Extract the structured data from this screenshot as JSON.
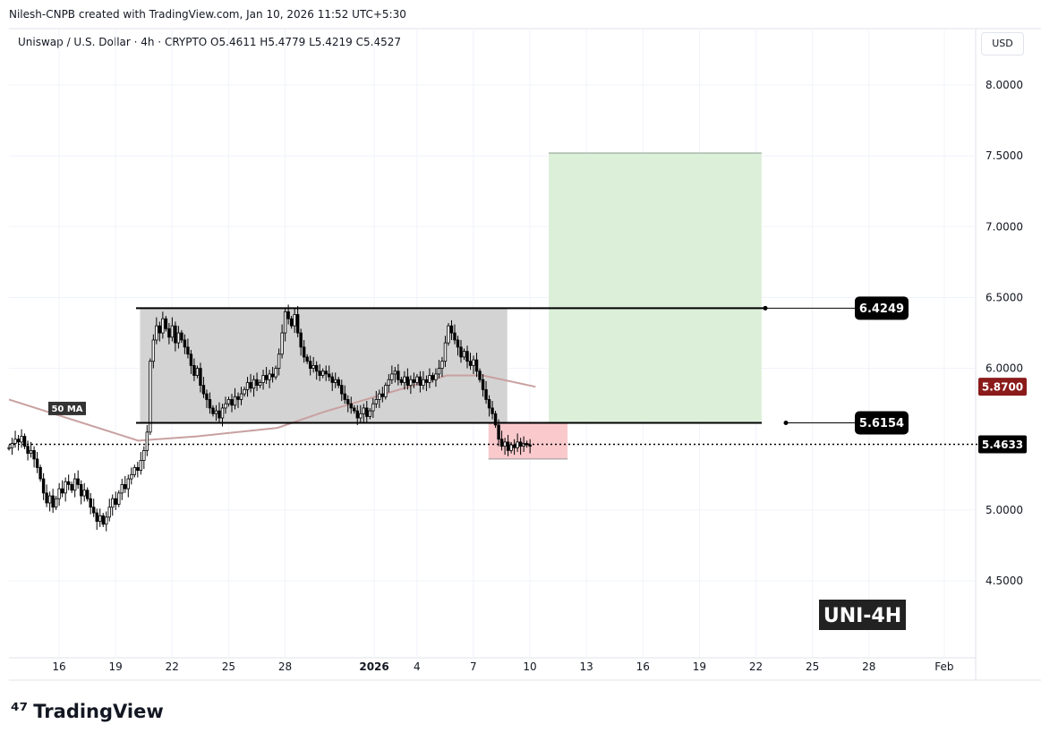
{
  "credit": "Nilesh-CNPB created with TradingView.com, Jan 10, 2026 11:52 UTC+5:30",
  "legend": "Uniswap / U.S. Dollar · 4h · CRYPTO  O5.4611  H5.4779  L5.4219  C5.4527",
  "currency": "USD",
  "price_ticks": [
    "8.0000",
    "7.5000",
    "7.0000",
    "6.5000",
    "6.0000",
    "5.0000",
    "4.5000"
  ],
  "time_ticks": [
    {
      "label": "16",
      "day": 0
    },
    {
      "label": "19",
      "day": 3
    },
    {
      "label": "22",
      "day": 6
    },
    {
      "label": "25",
      "day": 9
    },
    {
      "label": "28",
      "day": 12
    },
    {
      "label": "2026",
      "day": 16.4,
      "bold": true
    },
    {
      "label": "4",
      "day": 19
    },
    {
      "label": "7",
      "day": 22
    },
    {
      "label": "10",
      "day": 25
    },
    {
      "label": "13",
      "day": 28
    },
    {
      "label": "16",
      "day": 31
    },
    {
      "label": "19",
      "day": 34
    },
    {
      "label": "22",
      "day": 37
    },
    {
      "label": "25",
      "day": 40
    },
    {
      "label": "28",
      "day": 43
    },
    {
      "label": "Feb",
      "day": 47
    }
  ],
  "levels": {
    "resistance": "6.4249",
    "support": "5.6154",
    "ma_value": "5.8700",
    "last_price": "5.4633"
  },
  "ma_label": "50 MA",
  "watermark": "UNI-4H",
  "brand": "TradingView",
  "colors": {
    "up": "#ffffff",
    "down": "#000000",
    "ma": "#c9a0a0",
    "ma_badge": "#8b1a1a",
    "range_box": "#d3d3d3",
    "target": "#dcefd9",
    "stop": "#f9c9cc"
  },
  "chart_data": {
    "type": "candlestick",
    "timeframe": "4h",
    "first_candle_day": -2.66,
    "closes": [
      5.44,
      5.47,
      5.5,
      5.48,
      5.52,
      5.45,
      5.4,
      5.42,
      5.36,
      5.3,
      5.22,
      5.12,
      5.05,
      5.1,
      5.02,
      5.08,
      5.15,
      5.12,
      5.2,
      5.18,
      5.14,
      5.22,
      5.18,
      5.1,
      5.14,
      5.08,
      5.02,
      4.98,
      4.92,
      4.96,
      4.9,
      4.95,
      5.02,
      5.08,
      5.04,
      5.12,
      5.18,
      5.15,
      5.22,
      5.25,
      5.3,
      5.28,
      5.35,
      5.42,
      5.55,
      6.05,
      6.2,
      6.3,
      6.25,
      6.35,
      6.28,
      6.22,
      6.3,
      6.18,
      6.25,
      6.2,
      6.15,
      6.1,
      6.02,
      5.95,
      6.0,
      5.88,
      5.82,
      5.78,
      5.72,
      5.68,
      5.7,
      5.65,
      5.72,
      5.75,
      5.78,
      5.74,
      5.8,
      5.78,
      5.82,
      5.85,
      5.9,
      5.86,
      5.92,
      5.88,
      5.9,
      5.95,
      5.92,
      5.96,
      5.94,
      6.0,
      6.1,
      6.25,
      6.4,
      6.35,
      6.3,
      6.38,
      6.25,
      6.15,
      6.08,
      6.05,
      6.0,
      6.02,
      5.98,
      5.95,
      5.98,
      5.96,
      5.94,
      5.9,
      5.92,
      5.88,
      5.82,
      5.78,
      5.75,
      5.72,
      5.7,
      5.65,
      5.68,
      5.72,
      5.66,
      5.7,
      5.75,
      5.78,
      5.82,
      5.8,
      5.88,
      5.92,
      5.96,
      5.98,
      5.92,
      5.9,
      5.94,
      5.88,
      5.92,
      5.9,
      5.94,
      5.88,
      5.92,
      5.9,
      5.95,
      5.92,
      5.96,
      6.0,
      6.05,
      6.18,
      6.3,
      6.25,
      6.2,
      6.15,
      6.08,
      6.12,
      6.05,
      6.02,
      6.06,
      5.98,
      5.92,
      5.85,
      5.78,
      5.72,
      5.68,
      5.6,
      5.5,
      5.45,
      5.48,
      5.42,
      5.46,
      5.44,
      5.48,
      5.45,
      5.47,
      5.46,
      5.45
    ],
    "ma50": [
      [
        -2.66,
        5.78
      ],
      [
        4.2,
        5.49
      ],
      [
        7.3,
        5.52
      ],
      [
        11.6,
        5.58
      ],
      [
        14,
        5.69
      ],
      [
        16.8,
        5.8
      ],
      [
        20.6,
        5.95
      ],
      [
        22.5,
        5.95
      ],
      [
        25.3,
        5.87
      ]
    ],
    "range_box": {
      "day_start": 4.3,
      "day_end": 23.8,
      "top": 6.4249,
      "bottom": 5.6154
    },
    "target_box": {
      "day_start": 26,
      "day_end": 37.3,
      "top": 7.52,
      "bottom": 5.6154
    },
    "stop_box": {
      "day_start": 22.8,
      "day_end": 27,
      "top": 5.6154,
      "bottom": 5.36
    },
    "ylim": [
      4.1,
      8.3
    ]
  }
}
